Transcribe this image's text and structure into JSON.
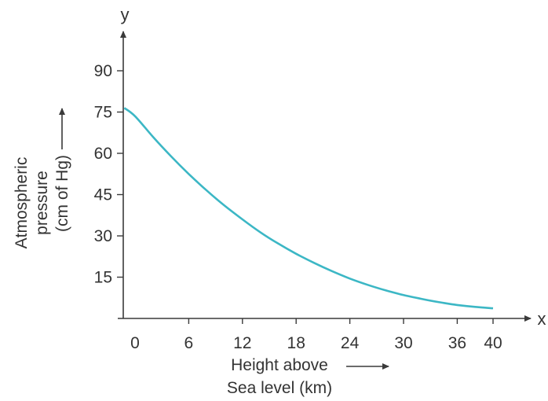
{
  "chart_data": {
    "type": "line",
    "title": "",
    "x_axis_letter": "x",
    "y_axis_letter": "y",
    "xlabel_lines": [
      "Height above",
      "Sea level (km)"
    ],
    "ylabel_lines": [
      "Atmospheric",
      "pressure",
      "(cm of Hg)"
    ],
    "x_ticks": [
      0,
      6,
      12,
      18,
      24,
      30,
      36,
      40
    ],
    "x_tick_labels": [
      "0",
      "6",
      "12",
      "18",
      "24",
      "30",
      "36",
      "40"
    ],
    "y_ticks": [
      15,
      30,
      45,
      60,
      75,
      90
    ],
    "y_tick_labels": [
      "15",
      "30",
      "45",
      "60",
      "75",
      "90"
    ],
    "xlim": [
      0,
      40
    ],
    "ylim": [
      0,
      90
    ],
    "grid": false,
    "series": [
      {
        "color": "#3cb7c5",
        "x": [
          -1.2,
          0,
          2,
          4,
          6,
          8,
          10,
          12,
          14,
          16,
          18,
          20,
          22,
          24,
          26,
          28,
          30,
          32,
          34,
          36,
          38,
          40
        ],
        "y": [
          76.5,
          73.5,
          66.0,
          59.0,
          52.5,
          46.5,
          41.0,
          36.0,
          31.3,
          27.2,
          23.5,
          20.2,
          17.2,
          14.5,
          12.2,
          10.2,
          8.5,
          7.1,
          5.9,
          4.9,
          4.2,
          3.7
        ]
      }
    ]
  }
}
